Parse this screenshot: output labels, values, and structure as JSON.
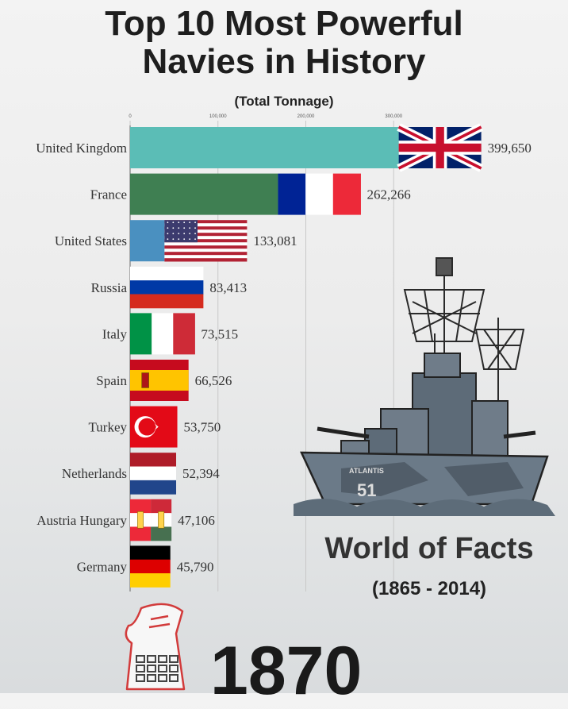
{
  "header": {
    "title_line1": "Top 10 Most Powerful",
    "title_line2": "Navies in History",
    "subtitle": "(Total Tonnage)"
  },
  "chart_data": {
    "type": "bar",
    "orientation": "horizontal",
    "title": "Top 10 Most Powerful Navies in History",
    "subtitle": "(Total Tonnage)",
    "xlim": [
      0,
      400000
    ],
    "ticks": [
      0,
      100000,
      200000,
      300000
    ],
    "tick_labels": [
      "0",
      "100,000",
      "200,000",
      "300,000"
    ],
    "grid": true,
    "categories": [
      "United Kingdom",
      "France",
      "United States",
      "Russia",
      "Italy",
      "Spain",
      "Turkey",
      "Netherlands",
      "Austria Hungary",
      "Germany"
    ],
    "values": [
      399650,
      262266,
      133081,
      83413,
      73515,
      66526,
      53750,
      52394,
      47106,
      45790
    ],
    "value_labels": [
      "399,650",
      "262,266",
      "133,081",
      "83,413",
      "73,515",
      "66,526",
      "53,750",
      "52,394",
      "47,106",
      "45,790"
    ],
    "bar_colors": [
      "#5bbdb6",
      "#3f7f52",
      "#4a90c0",
      "#e3b23c",
      "#6a4d8a",
      "#c74a4a",
      "#6b8ed6",
      "#9c6b3c",
      "#d17fb3",
      "#7a8a3a"
    ],
    "flag_icons": [
      "uk-flag-icon",
      "france-flag-icon",
      "usa-flag-icon",
      "russia-flag-icon",
      "italy-flag-icon",
      "spain-flag-icon",
      "turkey-flag-icon",
      "netherlands-flag-icon",
      "austria-hungary-flag-icon",
      "germany-flag-icon"
    ]
  },
  "branding": {
    "name": "World of Facts",
    "years": "(1865 - 2014)",
    "ship_hull_label": "51",
    "ship_name": "ATLANTIS"
  },
  "current_year": "1870",
  "icons": [
    "battleship-icon",
    "calculator-icon"
  ]
}
